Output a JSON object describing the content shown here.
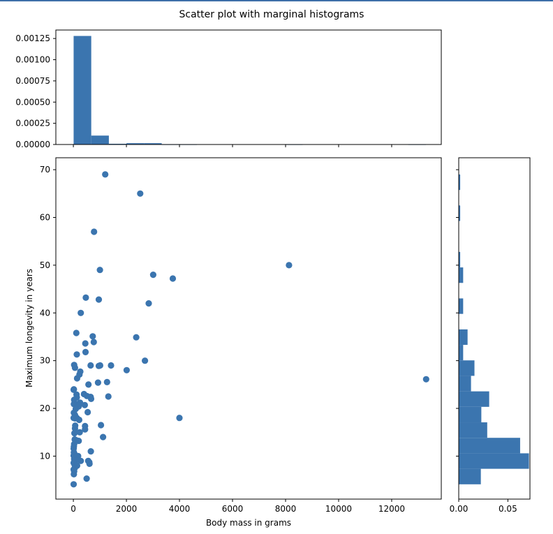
{
  "chart_data": {
    "type": "scatter",
    "title": "Scatter plot with marginal histograms",
    "xlabel": "Body mass in grams",
    "ylabel": "Maximum longevity in years",
    "color": "#3b75af",
    "scatter": {
      "xlim": [
        -660,
        13870
      ],
      "ylim": [
        1.0,
        72.5
      ],
      "xticks": [
        0,
        2000,
        4000,
        6000,
        8000,
        10000,
        12000
      ],
      "yticks": [
        10,
        20,
        30,
        40,
        50,
        60,
        70
      ],
      "points": [
        [
          1200,
          69
        ],
        [
          2520,
          65
        ],
        [
          780,
          57
        ],
        [
          8130,
          50
        ],
        [
          1000,
          49
        ],
        [
          3010,
          48
        ],
        [
          3750,
          47.2
        ],
        [
          470,
          43.2
        ],
        [
          960,
          42.8
        ],
        [
          2840,
          42
        ],
        [
          280,
          40
        ],
        [
          110,
          35.8
        ],
        [
          730,
          35.1
        ],
        [
          2370,
          34.9
        ],
        [
          770,
          33.9
        ],
        [
          450,
          33.6
        ],
        [
          460,
          31.8
        ],
        [
          130,
          31.3
        ],
        [
          2700,
          30
        ],
        [
          30,
          29.1
        ],
        [
          650,
          29
        ],
        [
          960,
          28.9
        ],
        [
          1010,
          29
        ],
        [
          1420,
          29
        ],
        [
          60,
          28.5
        ],
        [
          2010,
          28
        ],
        [
          260,
          27.7
        ],
        [
          230,
          27.1
        ],
        [
          13300,
          26.1
        ],
        [
          140,
          26.3
        ],
        [
          1270,
          25.5
        ],
        [
          930,
          25.4
        ],
        [
          570,
          25
        ],
        [
          20,
          24
        ],
        [
          10,
          23.9
        ],
        [
          400,
          23
        ],
        [
          120,
          22.9
        ],
        [
          510,
          22.6
        ],
        [
          650,
          22.4
        ],
        [
          670,
          22
        ],
        [
          1320,
          22.5
        ],
        [
          130,
          22.3
        ],
        [
          30,
          21.8
        ],
        [
          250,
          21.2
        ],
        [
          20,
          20.9
        ],
        [
          130,
          20.8
        ],
        [
          430,
          20.7
        ],
        [
          200,
          20.4
        ],
        [
          90,
          19.9
        ],
        [
          540,
          19.2
        ],
        [
          20,
          19.1
        ],
        [
          60,
          18.6
        ],
        [
          10,
          18
        ],
        [
          4000,
          18
        ],
        [
          130,
          18
        ],
        [
          60,
          17.9
        ],
        [
          220,
          17.6
        ],
        [
          1040,
          16.5
        ],
        [
          70,
          16.4
        ],
        [
          440,
          16.3
        ],
        [
          60,
          15.8
        ],
        [
          440,
          15.6
        ],
        [
          240,
          15
        ],
        [
          40,
          14.8
        ],
        [
          1120,
          14
        ],
        [
          50,
          13.5
        ],
        [
          120,
          13.3
        ],
        [
          200,
          13.2
        ],
        [
          30,
          12.5
        ],
        [
          20,
          12
        ],
        [
          10,
          11.6
        ],
        [
          660,
          11
        ],
        [
          20,
          10.8
        ],
        [
          40,
          10.5
        ],
        [
          10,
          10.1
        ],
        [
          180,
          10
        ],
        [
          60,
          9.7
        ],
        [
          30,
          9.4
        ],
        [
          280,
          9
        ],
        [
          90,
          9.1
        ],
        [
          560,
          9
        ],
        [
          600,
          8.7
        ],
        [
          610,
          8.4
        ],
        [
          10,
          8.6
        ],
        [
          40,
          8.3
        ],
        [
          140,
          8
        ],
        [
          50,
          7.5
        ],
        [
          10,
          7.2
        ],
        [
          30,
          6.8
        ],
        [
          20,
          6.2
        ],
        [
          500,
          5.3
        ],
        [
          10,
          4.1
        ]
      ]
    },
    "top_histogram": {
      "ylim": [
        0,
        0.00135
      ],
      "yticks": [
        0.0,
        0.00025,
        0.0005,
        0.00075,
        0.001,
        0.00125
      ],
      "ytick_labels": [
        "0.00000",
        "0.00025",
        "0.00050",
        "0.00075",
        "0.00100",
        "0.00125"
      ],
      "bin_start": 10,
      "bin_width": 664,
      "densities": [
        0.00128,
        0.000105,
        8.5e-06,
        1.55e-05,
        1.55e-05,
        1.5e-06,
        1.5e-06,
        0,
        0,
        0,
        0,
        0,
        1.5e-06,
        0,
        0,
        0,
        0,
        0,
        0,
        1.5e-06
      ]
    },
    "right_histogram": {
      "xlim": [
        0,
        0.0725
      ],
      "xticks": [
        0.0,
        0.05
      ],
      "xtick_labels": [
        "0.00",
        "0.05"
      ],
      "bin_start": 4.1,
      "bin_width": 3.245,
      "densities": [
        0.0225,
        0.0715,
        0.0625,
        0.029,
        0.023,
        0.031,
        0.0125,
        0.016,
        0.0045,
        0.009,
        0,
        0.0045,
        0,
        0.0045,
        0.0015,
        0,
        0,
        0.0015,
        0,
        0.0015,
        0
      ]
    }
  }
}
